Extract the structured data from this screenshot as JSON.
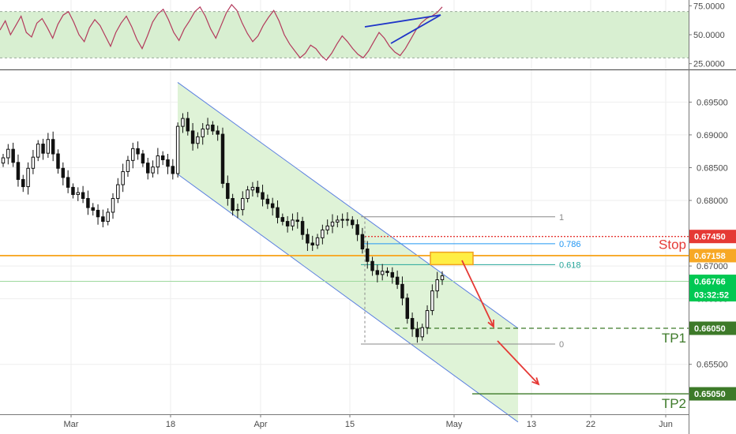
{
  "chart_data": [
    {
      "type": "line",
      "panel": "rsi",
      "y_ticks": [
        "75.0000",
        "50.0000",
        "25.0000"
      ],
      "y_tick_values": [
        75,
        50,
        25
      ],
      "band": [
        30,
        70
      ],
      "ylim": [
        20,
        80
      ],
      "series": [
        {
          "values": [
            54,
            62,
            50,
            58,
            66,
            52,
            48,
            60,
            64,
            56,
            47,
            59,
            67,
            70,
            61,
            50,
            44,
            56,
            63,
            58,
            49,
            40,
            52,
            60,
            66,
            57,
            46,
            38,
            49,
            61,
            68,
            72,
            63,
            52,
            45,
            55,
            62,
            70,
            74,
            66,
            55,
            47,
            58,
            69,
            76,
            71,
            60,
            51,
            44,
            49,
            58,
            65,
            71,
            62,
            50,
            42,
            36,
            30,
            34,
            41,
            38,
            32,
            28,
            34,
            42,
            49,
            44,
            38,
            33,
            30,
            36,
            44,
            52,
            47,
            40,
            35,
            32,
            38,
            46,
            54,
            60,
            64,
            66,
            69,
            74
          ],
          "color": "#b33a5c"
        }
      ]
    },
    {
      "type": "candlestick",
      "panel": "price",
      "x_ticks": [
        "Mar",
        "18",
        "Apr",
        "15",
        "May",
        "13",
        "22",
        "Jun"
      ],
      "y_ticks": [
        "0.69500",
        "0.69000",
        "0.68500",
        "0.68000",
        "0.67000",
        "0.66500",
        "0.65500"
      ],
      "y_tick_values": [
        0.695,
        0.69,
        0.685,
        0.68,
        0.67,
        0.665,
        0.655
      ],
      "ylim": [
        0.6475,
        0.6995
      ],
      "close": [
        0.6865,
        0.6878,
        0.6858,
        0.6832,
        0.6821,
        0.6849,
        0.6866,
        0.6886,
        0.6872,
        0.6893,
        0.6871,
        0.6849,
        0.6835,
        0.682,
        0.6809,
        0.6812,
        0.6803,
        0.6789,
        0.6785,
        0.6775,
        0.6768,
        0.6782,
        0.6803,
        0.6824,
        0.6844,
        0.6861,
        0.6879,
        0.6871,
        0.6857,
        0.6842,
        0.6851,
        0.6868,
        0.6862,
        0.6852,
        0.6841,
        0.6913,
        0.6925,
        0.6906,
        0.6887,
        0.6897,
        0.6909,
        0.6915,
        0.6906,
        0.6901,
        0.6826,
        0.6803,
        0.6785,
        0.6786,
        0.6803,
        0.6816,
        0.682,
        0.6812,
        0.6802,
        0.6795,
        0.6789,
        0.6774,
        0.6768,
        0.6761,
        0.677,
        0.6768,
        0.6748,
        0.6735,
        0.6732,
        0.6743,
        0.6755,
        0.6761,
        0.6767,
        0.677,
        0.6771,
        0.677,
        0.6763,
        0.6748,
        0.6726,
        0.6707,
        0.6693,
        0.6687,
        0.6692,
        0.669,
        0.6683,
        0.6672,
        0.6651,
        0.662,
        0.6604,
        0.6592,
        0.6606,
        0.6632,
        0.6662,
        0.6679,
        0.6685
      ],
      "x_first_candle_date": "Feb 18",
      "channel_upper": [
        0.698,
        0.6605
      ],
      "channel_lower": [
        0.684,
        0.6462
      ],
      "fib_levels": [
        {
          "label": "1",
          "value": 0.6775,
          "color": "#888888"
        },
        {
          "label": "0.786",
          "value": 0.6734,
          "color": "#2196f3"
        },
        {
          "label": "0.618",
          "value": 0.6702,
          "color": "#26a69a"
        },
        {
          "label": "0",
          "value": 0.6581,
          "color": "#888888"
        }
      ],
      "price_labels": [
        {
          "text": "0.67450",
          "value": 0.6745,
          "color": "#e53935",
          "label": "Stop",
          "label_color": "#e53935",
          "style": "dotted"
        },
        {
          "text": "0.67158",
          "value": 0.67158,
          "color": "#f7a825",
          "label": "",
          "style": "solid"
        },
        {
          "text": "0.66766",
          "value": 0.66766,
          "color": "#00c853",
          "countdown": "03:32:52",
          "style": "current"
        },
        {
          "text": "0.66050",
          "value": 0.6605,
          "color": "#3d7a29",
          "label": "TP1",
          "label_color": "#3d7a29",
          "style": "dashed"
        },
        {
          "text": "0.65050",
          "value": 0.6505,
          "color": "#3d7a29",
          "label": "TP2",
          "label_color": "#3d7a29",
          "style": "solid"
        }
      ],
      "entry_zone": [
        0.6702,
        0.6721
      ],
      "colors": {
        "up": "#ffffff",
        "down": "#111111",
        "channel_fill": "#dff3d7",
        "channel_line": "#5a7fe0",
        "zone_fill": "#ffee44",
        "zone_border": "#f0a020",
        "arrow": "#e53935",
        "grid": "#eeeeee",
        "band_fill": "#d8efd1"
      }
    }
  ]
}
